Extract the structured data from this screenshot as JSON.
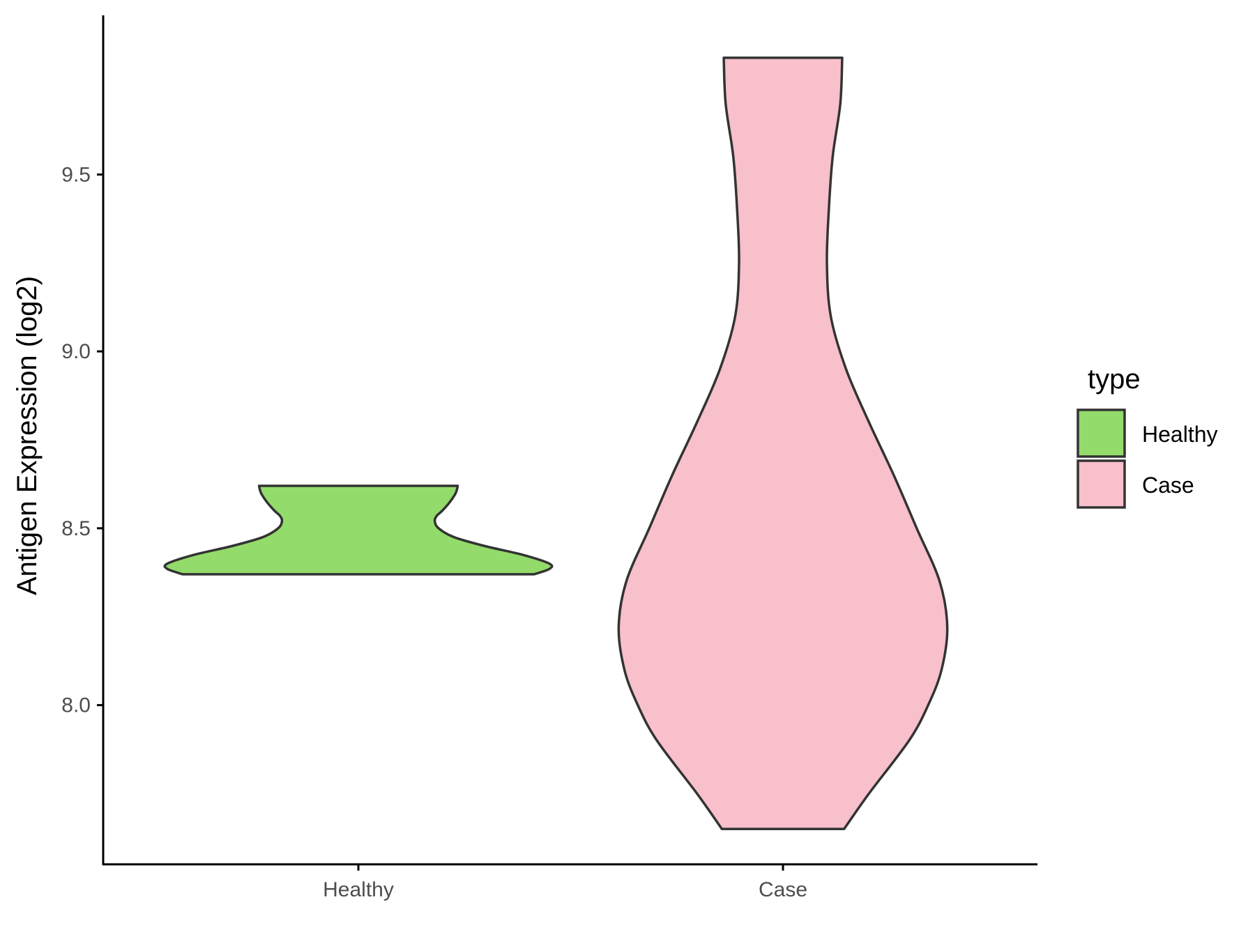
{
  "chart_data": {
    "type": "violin",
    "title": "",
    "xlabel": "",
    "ylabel": "Antigen Expression (log2)",
    "ylim": [
      7.55,
      9.95
    ],
    "yticks": [
      8.0,
      8.5,
      9.0,
      9.5
    ],
    "ytick_labels": [
      "8.0",
      "8.5",
      "9.0",
      "9.5"
    ],
    "categories": [
      "Healthy",
      "Case"
    ],
    "grid": false,
    "legend": {
      "title": "type",
      "position": "right",
      "entries": [
        {
          "label": "Healthy",
          "color": "#93DB6A"
        },
        {
          "label": "Case",
          "color": "#F7C0CB"
        }
      ]
    },
    "series": [
      {
        "name": "Healthy",
        "color": "#93DB6A",
        "min": 8.37,
        "max": 8.62,
        "density": [
          [
            8.37,
            0.92
          ],
          [
            8.385,
            1.0
          ],
          [
            8.4,
            1.0
          ],
          [
            8.425,
            0.86
          ],
          [
            8.45,
            0.66
          ],
          [
            8.475,
            0.5
          ],
          [
            8.5,
            0.42
          ],
          [
            8.52,
            0.4
          ],
          [
            8.535,
            0.41
          ],
          [
            8.55,
            0.44
          ],
          [
            8.575,
            0.48
          ],
          [
            8.6,
            0.51
          ],
          [
            8.62,
            0.52
          ]
        ]
      },
      {
        "name": "Case",
        "color": "#F7C0CB",
        "min": 7.65,
        "max": 9.83,
        "density": [
          [
            7.65,
            0.32
          ],
          [
            7.75,
            0.45
          ],
          [
            7.9,
            0.66
          ],
          [
            8.0,
            0.76
          ],
          [
            8.1,
            0.83
          ],
          [
            8.22,
            0.86
          ],
          [
            8.35,
            0.82
          ],
          [
            8.5,
            0.7
          ],
          [
            8.65,
            0.58
          ],
          [
            8.8,
            0.45
          ],
          [
            8.95,
            0.33
          ],
          [
            9.1,
            0.25
          ],
          [
            9.25,
            0.23
          ],
          [
            9.4,
            0.24
          ],
          [
            9.55,
            0.26
          ],
          [
            9.7,
            0.3
          ],
          [
            9.83,
            0.31
          ]
        ]
      }
    ]
  },
  "colors": {
    "outline": "#333333",
    "axis": "#000000",
    "tick_text": "#4d4d4d"
  }
}
